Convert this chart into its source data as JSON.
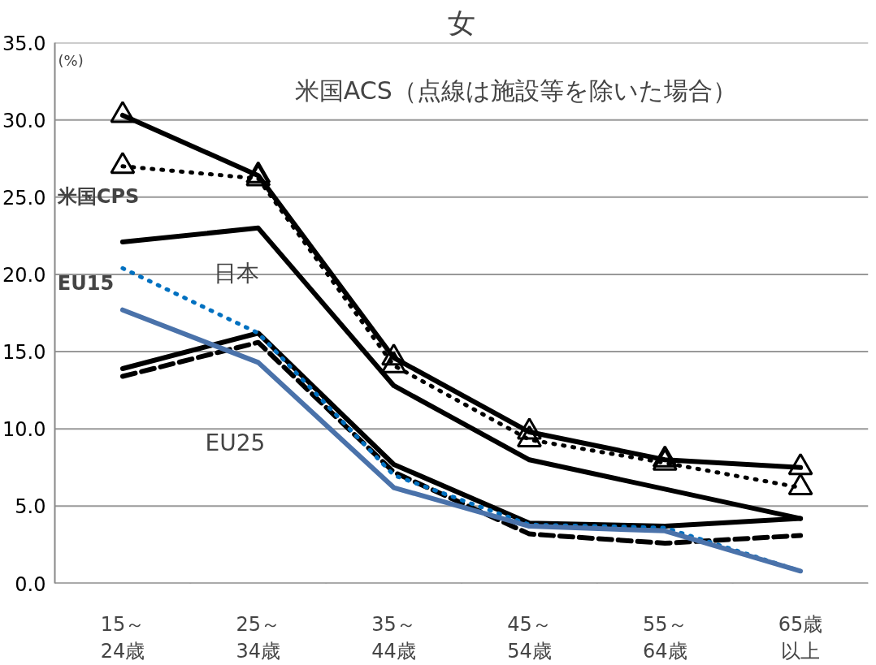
{
  "chart_data": {
    "type": "line",
    "title": "女",
    "ylabel": "(%)",
    "categories": [
      "15～24歳",
      "25～34歳",
      "35～44歳",
      "45～54歳",
      "55～64歳",
      "65歳以上"
    ],
    "ylim": [
      0,
      35
    ],
    "yticks": [
      {
        "value": 0,
        "label": "0.0"
      },
      {
        "value": 5,
        "label": "5.0"
      },
      {
        "value": 10,
        "label": "10.0"
      },
      {
        "value": 15,
        "label": "15.0"
      },
      {
        "value": 20,
        "label": "20.0"
      },
      {
        "value": 25,
        "label": "25.0"
      },
      {
        "value": 30,
        "label": "30.0"
      },
      {
        "value": 35,
        "label": "35.0"
      }
    ],
    "grid": "y",
    "series": [
      {
        "color": "#000000",
        "values": [
          30.3,
          26.4,
          14.6,
          9.8,
          8.0,
          7.5
        ],
        "marker": "triangle",
        "line_style": "solid"
      },
      {
        "color": "#000000",
        "values": [
          27.0,
          26.2,
          14.1,
          9.3,
          7.8,
          6.2
        ],
        "marker": "triangle",
        "line_style": "dotted"
      },
      {
        "color": "#000000",
        "values": [
          22.1,
          23.0,
          12.8,
          8.0,
          6.1,
          4.2
        ],
        "marker": "none",
        "line_style": "solid"
      },
      {
        "color": "#000000",
        "values": [
          13.9,
          16.2,
          7.7,
          3.9,
          3.7,
          4.2
        ],
        "marker": "none",
        "line_style": "solid"
      },
      {
        "color": "#000000",
        "values": [
          13.4,
          15.6,
          7.2,
          3.2,
          2.6,
          3.1
        ],
        "marker": "none",
        "line_style": "dashed"
      },
      {
        "color": "#0070c0",
        "values": [
          20.4,
          16.2,
          7.0,
          3.8,
          3.6,
          0.8
        ],
        "marker": "none",
        "line_style": "dotted"
      },
      {
        "color": "#4a72aa",
        "values": [
          17.7,
          14.3,
          6.2,
          3.7,
          3.4,
          0.8
        ],
        "marker": "none",
        "line_style": "solid"
      }
    ],
    "annotations": [
      "米国ACS（点線は施設等を除いた場合）",
      "米国CPS",
      "日本",
      "EU15",
      "EU25"
    ]
  }
}
